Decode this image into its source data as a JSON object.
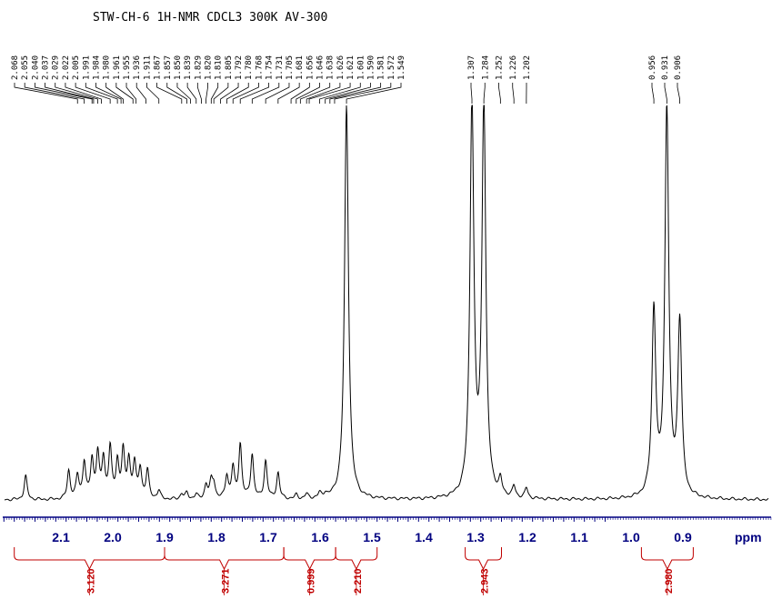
{
  "chart_data": {
    "type": "line",
    "title": "STW-CH-6 1H-NMR CDCL3 300K AV-300",
    "xlabel": "ppm",
    "xlim": [
      2.3,
      -0.25
    ],
    "x_ticks_labeled": [
      "2.1",
      "2.0",
      "1.9",
      "1.8",
      "1.7",
      "1.6",
      "1.5",
      "1.4",
      "1.3",
      "1.2",
      "1.1",
      "1.0",
      "0.9"
    ],
    "peak_labels": [
      "2.068",
      "2.055",
      "2.040",
      "2.037",
      "2.029",
      "2.022",
      "2.005",
      "1.991",
      "1.984",
      "1.980",
      "1.961",
      "1.955",
      "1.936",
      "1.911",
      "1.867",
      "1.857",
      "1.850",
      "1.839",
      "1.829",
      "1.820",
      "1.810",
      "1.805",
      "1.792",
      "1.780",
      "1.768",
      "1.754",
      "1.731",
      "1.705",
      "1.681",
      "1.656",
      "1.646",
      "1.638",
      "1.626",
      "1.621",
      "1.601",
      "1.590",
      "1.581",
      "1.572",
      "1.549",
      "1.307",
      "1.284",
      "1.252",
      "1.226",
      "1.202",
      "0.956",
      "0.931",
      "0.906"
    ],
    "peaks": [
      {
        "ppm": 2.168,
        "height": 0.06
      },
      {
        "ppm": 2.085,
        "height": 0.072
      },
      {
        "ppm": 2.068,
        "height": 0.058
      },
      {
        "ppm": 2.055,
        "height": 0.092
      },
      {
        "ppm": 2.04,
        "height": 0.096
      },
      {
        "ppm": 2.029,
        "height": 0.112
      },
      {
        "ppm": 2.018,
        "height": 0.098
      },
      {
        "ppm": 2.005,
        "height": 0.128
      },
      {
        "ppm": 1.991,
        "height": 0.09
      },
      {
        "ppm": 1.98,
        "height": 0.118
      },
      {
        "ppm": 1.969,
        "height": 0.095
      },
      {
        "ppm": 1.958,
        "height": 0.088
      },
      {
        "ppm": 1.947,
        "height": 0.075
      },
      {
        "ppm": 1.933,
        "height": 0.072
      },
      {
        "ppm": 1.911,
        "height": 0.022
      },
      {
        "ppm": 1.867,
        "height": 0.014
      },
      {
        "ppm": 1.857,
        "height": 0.016
      },
      {
        "ppm": 1.839,
        "height": 0.012
      },
      {
        "ppm": 1.82,
        "height": 0.036
      },
      {
        "ppm": 1.81,
        "height": 0.042
      },
      {
        "ppm": 1.805,
        "height": 0.036
      },
      {
        "ppm": 1.78,
        "height": 0.058
      },
      {
        "ppm": 1.768,
        "height": 0.078
      },
      {
        "ppm": 1.754,
        "height": 0.138
      },
      {
        "ppm": 1.731,
        "height": 0.112
      },
      {
        "ppm": 1.705,
        "height": 0.096
      },
      {
        "ppm": 1.681,
        "height": 0.066
      },
      {
        "ppm": 1.646,
        "height": 0.01
      },
      {
        "ppm": 1.626,
        "height": 0.012
      },
      {
        "ppm": 1.601,
        "height": 0.012
      },
      {
        "ppm": 1.59,
        "height": 0.01
      },
      {
        "ppm": 1.549,
        "height": 1.0
      },
      {
        "ppm": 1.307,
        "height": 1.0
      },
      {
        "ppm": 1.284,
        "height": 1.0
      },
      {
        "ppm": 1.252,
        "height": 0.038
      },
      {
        "ppm": 1.226,
        "height": 0.028
      },
      {
        "ppm": 1.202,
        "height": 0.026
      },
      {
        "ppm": 0.956,
        "height": 0.47
      },
      {
        "ppm": 0.931,
        "height": 0.985
      },
      {
        "ppm": 0.906,
        "height": 0.44
      }
    ],
    "integrals": [
      {
        "label": "3.120",
        "from": 2.19,
        "to": 1.9
      },
      {
        "label": "3.271",
        "from": 1.9,
        "to": 1.67
      },
      {
        "label": "0.999",
        "from": 1.67,
        "to": 1.57
      },
      {
        "label": "2.210",
        "from": 1.57,
        "to": 1.49
      },
      {
        "label": "2.943",
        "from": 1.32,
        "to": 1.25
      },
      {
        "label": "2.980",
        "from": 0.98,
        "to": 0.88
      }
    ],
    "colors": {
      "spectrum": "#000000",
      "axis": "#000080",
      "integral": "#c00000",
      "title": "#000000"
    },
    "grid": false
  }
}
